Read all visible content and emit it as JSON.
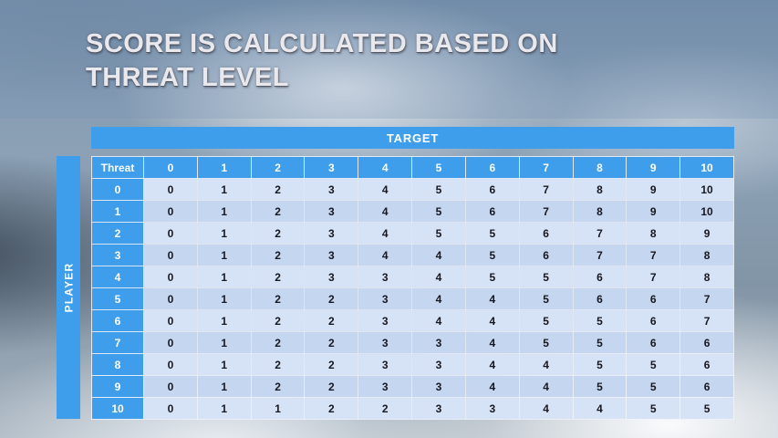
{
  "title": {
    "line1": "SCORE IS CALCULATED BASED ON",
    "line2": "THREAT LEVEL"
  },
  "matrix": {
    "target_label": "TARGET",
    "player_label": "PLAYER",
    "corner_label": "Threat",
    "column_headers": [
      "0",
      "1",
      "2",
      "3",
      "4",
      "5",
      "6",
      "7",
      "8",
      "9",
      "10"
    ],
    "row_headers": [
      "0",
      "1",
      "2",
      "3",
      "4",
      "5",
      "6",
      "7",
      "8",
      "9",
      "10"
    ],
    "rows": [
      [
        0,
        1,
        2,
        3,
        4,
        5,
        6,
        7,
        8,
        9,
        10
      ],
      [
        0,
        1,
        2,
        3,
        4,
        5,
        6,
        7,
        8,
        9,
        10
      ],
      [
        0,
        1,
        2,
        3,
        4,
        5,
        5,
        6,
        7,
        8,
        9
      ],
      [
        0,
        1,
        2,
        3,
        4,
        4,
        5,
        6,
        7,
        7,
        8
      ],
      [
        0,
        1,
        2,
        3,
        3,
        4,
        5,
        5,
        6,
        7,
        8
      ],
      [
        0,
        1,
        2,
        2,
        3,
        4,
        4,
        5,
        6,
        6,
        7
      ],
      [
        0,
        1,
        2,
        2,
        3,
        4,
        4,
        5,
        5,
        6,
        7
      ],
      [
        0,
        1,
        2,
        2,
        3,
        3,
        4,
        5,
        5,
        6,
        6
      ],
      [
        0,
        1,
        2,
        2,
        3,
        3,
        4,
        4,
        5,
        5,
        6
      ],
      [
        0,
        1,
        2,
        2,
        3,
        3,
        4,
        4,
        5,
        5,
        6
      ],
      [
        0,
        1,
        1,
        2,
        2,
        3,
        3,
        4,
        4,
        5,
        5
      ]
    ]
  },
  "colors": {
    "accent_blue": "#3E9EEC",
    "row_band_light": "#D6E2F6",
    "row_band_dark": "#C4D6F0",
    "cell_text": "#17171F",
    "header_text": "#FFFFFF",
    "title_text": "#E9E8EC"
  },
  "chart_data": {
    "type": "table",
    "title": "Score matrix: player threat level vs target threat level",
    "xlabel": "TARGET",
    "ylabel": "PLAYER",
    "corner_header": "Threat",
    "columns": [
      "0",
      "1",
      "2",
      "3",
      "4",
      "5",
      "6",
      "7",
      "8",
      "9",
      "10"
    ],
    "row_labels": [
      "0",
      "1",
      "2",
      "3",
      "4",
      "5",
      "6",
      "7",
      "8",
      "9",
      "10"
    ],
    "rows": [
      [
        0,
        1,
        2,
        3,
        4,
        5,
        6,
        7,
        8,
        9,
        10
      ],
      [
        0,
        1,
        2,
        3,
        4,
        5,
        6,
        7,
        8,
        9,
        10
      ],
      [
        0,
        1,
        2,
        3,
        4,
        5,
        5,
        6,
        7,
        8,
        9
      ],
      [
        0,
        1,
        2,
        3,
        4,
        4,
        5,
        6,
        7,
        7,
        8
      ],
      [
        0,
        1,
        2,
        3,
        3,
        4,
        5,
        5,
        6,
        7,
        8
      ],
      [
        0,
        1,
        2,
        2,
        3,
        4,
        4,
        5,
        6,
        6,
        7
      ],
      [
        0,
        1,
        2,
        2,
        3,
        4,
        4,
        5,
        5,
        6,
        7
      ],
      [
        0,
        1,
        2,
        2,
        3,
        3,
        4,
        5,
        5,
        6,
        6
      ],
      [
        0,
        1,
        2,
        2,
        3,
        3,
        4,
        4,
        5,
        5,
        6
      ],
      [
        0,
        1,
        2,
        2,
        3,
        3,
        4,
        4,
        5,
        5,
        6
      ],
      [
        0,
        1,
        1,
        2,
        2,
        3,
        3,
        4,
        4,
        5,
        5
      ]
    ]
  }
}
